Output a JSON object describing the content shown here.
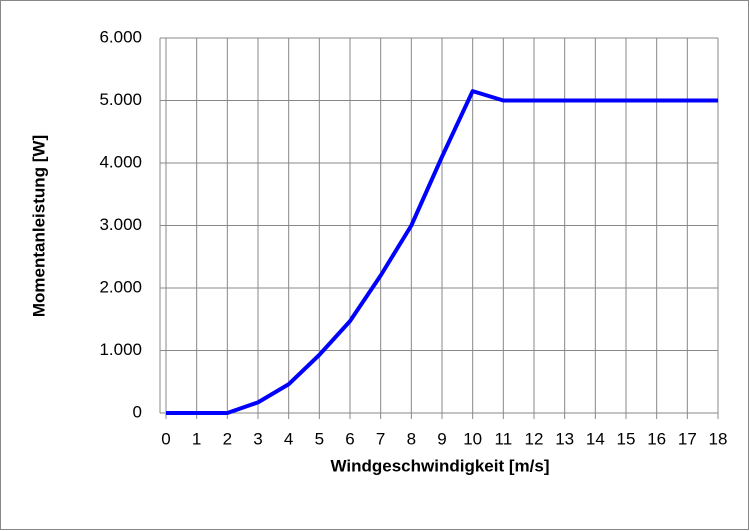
{
  "chart_data": {
    "type": "line",
    "x_label": "Windgeschwindigkeit [m/s]",
    "y_label": "Momentanleistung [W]",
    "x": [
      0,
      1,
      2,
      3,
      4,
      5,
      6,
      7,
      8,
      9,
      10,
      11,
      12,
      13,
      14,
      15,
      16,
      17,
      18
    ],
    "series": [
      {
        "color": "#0000ff",
        "values": [
          0,
          0,
          0,
          170,
          460,
          930,
          1470,
          2200,
          3000,
          4100,
          5150,
          5000,
          5000,
          5000,
          5000,
          5000,
          5000,
          5000,
          5000
        ]
      }
    ],
    "xlim": [
      0,
      18
    ],
    "xticks": [
      0,
      1,
      2,
      3,
      4,
      5,
      6,
      7,
      8,
      9,
      10,
      11,
      12,
      13,
      14,
      15,
      16,
      17,
      18
    ],
    "ylim": [
      0,
      6000
    ],
    "yticks": [
      0,
      {
        "value": 1000,
        "label": "1.000"
      },
      {
        "value": 2000,
        "label": "2.000"
      },
      {
        "value": 3000,
        "label": "3.000"
      },
      {
        "value": 4000,
        "label": "4.000"
      },
      {
        "value": 5000,
        "label": "5.000"
      },
      {
        "value": 6000,
        "label": "6.000"
      }
    ],
    "grid": true
  }
}
